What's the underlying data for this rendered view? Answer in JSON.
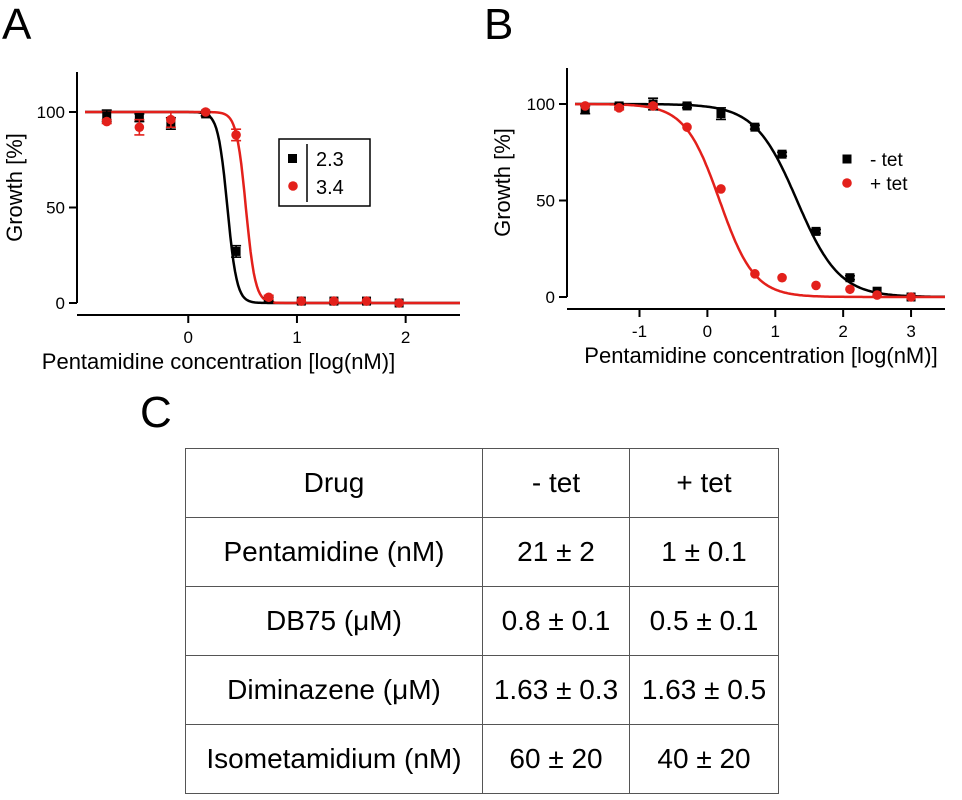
{
  "panels": {
    "a": "A",
    "b": "B",
    "c": "C"
  },
  "colors": {
    "black": "#000000",
    "red": "#e3201b",
    "grid": "#555555"
  },
  "chart_data": [
    {
      "type": "scatter",
      "panel": "A",
      "xlabel": "Pentamidine concentration [log(nM)]",
      "ylabel": "Growth [%]",
      "xlim": [
        -0.95,
        2.5
      ],
      "ylim": [
        0,
        100
      ],
      "xticks": [
        0,
        1,
        2
      ],
      "yticks": [
        0,
        50,
        100
      ],
      "legend_placement": "center-right",
      "legend_values": [
        "2.3",
        "3.4"
      ],
      "series": [
        {
          "color": "#000000",
          "marker": "square",
          "x": [
            -0.75,
            -0.45,
            -0.16,
            0.16,
            0.44,
            0.74,
            1.04,
            1.34,
            1.64,
            1.94
          ],
          "y": [
            98,
            97,
            94,
            99,
            27,
            2,
            1,
            1,
            1,
            0
          ],
          "err": [
            3,
            2,
            3,
            1,
            3,
            1,
            0,
            0,
            0,
            0
          ],
          "fit": {
            "log_ic50": 0.36,
            "hill": 10
          }
        },
        {
          "color": "#e3201b",
          "marker": "circle",
          "x": [
            -0.75,
            -0.45,
            -0.16,
            0.16,
            0.44,
            0.74,
            1.04,
            1.34,
            1.64,
            1.94
          ],
          "y": [
            95,
            92,
            96,
            100,
            88,
            3,
            1,
            1,
            1,
            0
          ],
          "err": [
            1,
            4,
            4,
            0,
            3,
            1,
            0,
            0,
            0,
            0
          ],
          "fit": {
            "log_ic50": 0.53,
            "hill": 10
          }
        }
      ]
    },
    {
      "type": "scatter",
      "panel": "B",
      "xlabel": "Pentamidine concentration [log(nM)]",
      "ylabel": "Growth [%]",
      "xlim": [
        -1.95,
        3.5
      ],
      "ylim": [
        0,
        100
      ],
      "xticks": [
        -1,
        0,
        1,
        2,
        3
      ],
      "yticks": [
        0,
        50,
        100
      ],
      "legend_placement": "right",
      "series": [
        {
          "name": "- tet",
          "color": "#000000",
          "marker": "square",
          "x": [
            -1.8,
            -1.3,
            -0.8,
            -0.3,
            0.2,
            0.7,
            1.1,
            1.6,
            2.1,
            2.5,
            3.0
          ],
          "y": [
            97,
            99,
            100,
            99,
            95,
            88,
            74,
            34,
            10,
            3,
            0
          ],
          "err": [
            2,
            1,
            3,
            1,
            3,
            1,
            1,
            1,
            1,
            0,
            0
          ],
          "fit": {
            "log_ic50": 1.32,
            "hill": 1.4
          }
        },
        {
          "name": "+ tet",
          "color": "#e3201b",
          "marker": "circle",
          "x": [
            -1.8,
            -1.3,
            -0.8,
            -0.3,
            0.2,
            0.7,
            1.1,
            1.6,
            2.1,
            2.5,
            3.0
          ],
          "y": [
            99,
            98,
            99,
            88,
            56,
            12,
            10,
            6,
            4,
            1,
            0
          ],
          "err": [
            0,
            1,
            1,
            0,
            0,
            0,
            0,
            0,
            0,
            0,
            0
          ],
          "fit": {
            "log_ic50": 0.18,
            "hill": 1.7
          }
        }
      ]
    },
    {
      "type": "table",
      "panel": "C",
      "columns": [
        "Drug",
        "- tet",
        "+ tet"
      ],
      "rows": [
        [
          "Pentamidine (nM)",
          "21 ± 2",
          "1 ± 0.1"
        ],
        [
          "DB75 (μM)",
          "0.8 ± 0.1",
          "0.5 ± 0.1"
        ],
        [
          "Diminazene (μM)",
          "1.63 ± 0.3",
          "1.63 ± 0.5"
        ],
        [
          "Isometamidium (nM)",
          "60 ± 20",
          "40 ± 20"
        ]
      ]
    }
  ]
}
